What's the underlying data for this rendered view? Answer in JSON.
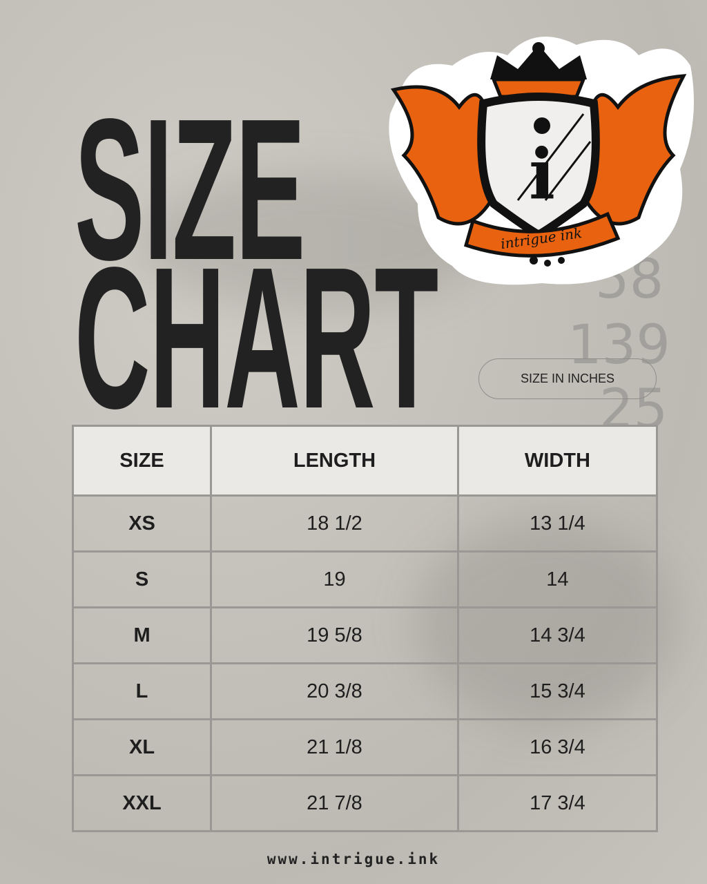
{
  "title_line1": "SIZE",
  "title_line2": "CHART",
  "unit_label": "SIZE IN INCHES",
  "background_numbers": [
    "58",
    "139",
    "25"
  ],
  "logo": {
    "text": "intrigue ink",
    "letter": "i",
    "accent": "#e8620f"
  },
  "table": {
    "headers": [
      "SIZE",
      "LENGTH",
      "WIDTH"
    ],
    "rows": [
      [
        "XS",
        "18 1/2",
        "13 1/4"
      ],
      [
        "S",
        "19",
        "14"
      ],
      [
        "M",
        "19 5/8",
        "14 3/4"
      ],
      [
        "L",
        "20 3/8",
        "15 3/4"
      ],
      [
        "XL",
        "21 1/8",
        "16 3/4"
      ],
      [
        "XXL",
        "21 7/8",
        "17 3/4"
      ]
    ]
  },
  "footer": "www.intrigue.ink"
}
